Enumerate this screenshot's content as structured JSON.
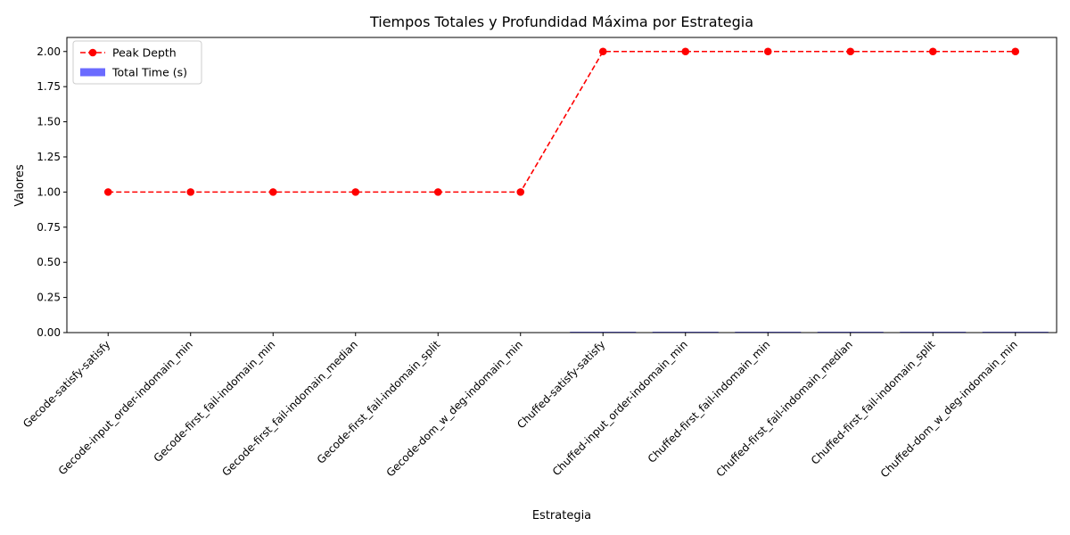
{
  "chart_data": {
    "type": "bar",
    "title": "Tiempos Totales y Profundidad Máxima por Estrategia",
    "xlabel": "Estrategia",
    "ylabel": "Valores",
    "ylim": [
      0,
      2.1
    ],
    "yticks": [
      "0.00",
      "0.25",
      "0.50",
      "0.75",
      "1.00",
      "1.25",
      "1.50",
      "1.75",
      "2.00"
    ],
    "categories": [
      "Gecode-satisfy-satisfy",
      "Gecode-input_order-indomain_min",
      "Gecode-first_fail-indomain_min",
      "Gecode-first_fail-indomain_median",
      "Gecode-first_fail-indomain_split",
      "Gecode-dom_w_deg-indomain_min",
      "Chuffed-satisfy-satisfy",
      "Chuffed-input_order-indomain_min",
      "Chuffed-first_fail-indomain_min",
      "Chuffed-first_fail-indomain_median",
      "Chuffed-first_fail-indomain_split",
      "Chuffed-dom_w_deg-indomain_min"
    ],
    "series": [
      {
        "name": "Total Time (s)",
        "kind": "bar",
        "color": "#6b6bff",
        "values": [
          0,
          0,
          0,
          0,
          0,
          0,
          0.003,
          0.003,
          0.003,
          0.003,
          0.003,
          0.003
        ]
      },
      {
        "name": "Peak Depth",
        "kind": "line",
        "style": "dashed",
        "marker": "circle",
        "color": "#ff0000",
        "values": [
          1,
          1,
          1,
          1,
          1,
          1,
          2,
          2,
          2,
          2,
          2,
          2
        ]
      }
    ],
    "legend_position": "top-left",
    "grid": false
  }
}
